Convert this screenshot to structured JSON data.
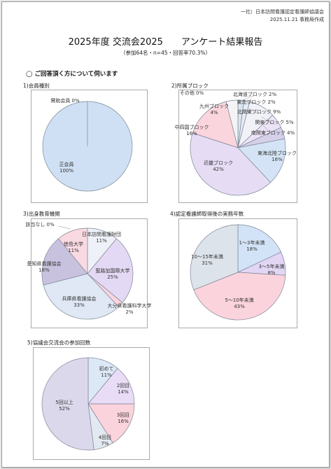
{
  "header": {
    "org": "一社）日本訪問看護認定看護師協議会",
    "date": "2025.11.21 事務局作成"
  },
  "title": "2025年度 交流会2025　　アンケート結果報告",
  "subtitle": "（参加64名・n=45・回答率70.3%）",
  "section": "◯ ご回答頂く方について伺います",
  "charts": [
    {
      "title": "1)会員種別",
      "type": "pie",
      "slices": [
        {
          "name": "賛助会員",
          "pct": "0%",
          "value": 0,
          "color": "#c7d5ea"
        },
        {
          "name": "正会員",
          "pct": "100%",
          "value": 100,
          "color": "#cfe0f4"
        }
      ]
    },
    {
      "title": "2)所属ブロック",
      "type": "pie",
      "slices": [
        {
          "name": "北海道ブロック",
          "pct": "2%",
          "value": 2,
          "color": "#dbe6f2"
        },
        {
          "name": "東北ブロック",
          "pct": "2%",
          "value": 2,
          "color": "#e7ecf6"
        },
        {
          "name": "北関東ブロック",
          "pct": "9%",
          "value": 9,
          "color": "#f1f1f8"
        },
        {
          "name": "関東ブロック",
          "pct": "5%",
          "value": 5,
          "color": "#ede3f6"
        },
        {
          "name": "南関東ブロック",
          "pct": "4%",
          "value": 4,
          "color": "#d6d0ea"
        },
        {
          "name": "東海北陸ブロック",
          "pct": "16%",
          "value": 16,
          "color": "#d4e4f6"
        },
        {
          "name": "近畿ブロック",
          "pct": "42%",
          "value": 42,
          "color": "#e6ddf5"
        },
        {
          "name": "中四国ブロック",
          "pct": "16%",
          "value": 16,
          "color": "#fbd5de"
        },
        {
          "name": "九州ブロック",
          "pct": "4%",
          "value": 4,
          "color": "#f4f4f4"
        },
        {
          "name": "その他",
          "pct": "0%",
          "value": 0,
          "color": "#cccccc"
        }
      ]
    },
    {
      "title": "3)出身教育機関",
      "type": "pie",
      "slices": [
        {
          "name": "日本訪問看護財団",
          "pct": "11%",
          "value": 11,
          "color": "#eef2f8"
        },
        {
          "name": "聖路加国際大学",
          "pct": "25%",
          "value": 25,
          "color": "#e3d9f4"
        },
        {
          "name": "大分県看護科学大学",
          "pct": "2%",
          "value": 2,
          "color": "#fbd5de"
        },
        {
          "name": "兵庫県看護協会",
          "pct": "33%",
          "value": 33,
          "color": "#dfe8f4"
        },
        {
          "name": "愛知県看護協会",
          "pct": "18%",
          "value": 18,
          "color": "#c9c2de"
        },
        {
          "name": "徳島大学",
          "pct": "11%",
          "value": 11,
          "color": "#f9d9e2"
        },
        {
          "name": "該当なし",
          "pct": "0%",
          "value": 0,
          "color": "#cccccc"
        }
      ]
    },
    {
      "title": "4)認定看護師取得後の実務年数",
      "type": "pie",
      "slices": [
        {
          "name": "1～3年未満",
          "pct": "18%",
          "value": 18,
          "color": "#d3e3f7"
        },
        {
          "name": "3～5年未満",
          "pct": "8%",
          "value": 8,
          "color": "#e2d6f4"
        },
        {
          "name": "5～10年未満",
          "pct": "43%",
          "value": 43,
          "color": "#fbd3dc"
        },
        {
          "name": "10～15年未満",
          "pct": "31%",
          "value": 31,
          "color": "#dde3ea"
        }
      ]
    },
    {
      "title": "5)協議会交流会の参加回数",
      "type": "pie",
      "slices": [
        {
          "name": "初めて",
          "pct": "11%",
          "value": 11,
          "color": "#dde8f6"
        },
        {
          "name": "2回目",
          "pct": "14%",
          "value": 14,
          "color": "#e8dcf6"
        },
        {
          "name": "3回目",
          "pct": "16%",
          "value": 16,
          "color": "#fbd3dc"
        },
        {
          "name": "4回目",
          "pct": "7%",
          "value": 7,
          "color": "#e2e9f1"
        },
        {
          "name": "5回以上",
          "pct": "52%",
          "value": 52,
          "color": "#dcd8ec"
        }
      ]
    }
  ]
}
